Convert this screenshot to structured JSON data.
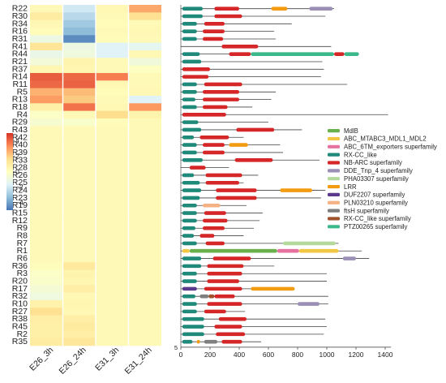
{
  "chart_data": {
    "type": "heatmap",
    "rows": [
      "R22",
      "R30",
      "R34",
      "R16",
      "R31",
      "R41",
      "R44",
      "R21",
      "R37",
      "R14",
      "R11",
      "R5",
      "R13",
      "R18",
      "R4",
      "R29",
      "R43",
      "R42",
      "R40",
      "R39",
      "R33",
      "R28",
      "R26",
      "R25",
      "R24",
      "R23",
      "R19",
      "R15",
      "R12",
      "R9",
      "R8",
      "R7",
      "R1",
      "R6",
      "R36",
      "R3",
      "R20",
      "R17",
      "R32",
      "R10",
      "R27",
      "R38",
      "R45",
      "R2",
      "R35"
    ],
    "columns": [
      "E26_3h",
      "E26_24h",
      "E31_3h",
      "E31_24h"
    ],
    "values": [
      [
        0.3,
        -2.0,
        0.4,
        2.8
      ],
      [
        1.0,
        -2.5,
        0.3,
        1.6
      ],
      [
        0.4,
        -3.0,
        0.2,
        0.3
      ],
      [
        0.2,
        -3.4,
        0.3,
        0.4
      ],
      [
        -1.0,
        -4.5,
        0.2,
        0.3
      ],
      [
        1.4,
        -1.0,
        -1.6,
        -1.4
      ],
      [
        -1.2,
        -0.9,
        -1.6,
        0.4
      ],
      [
        -0.7,
        0.6,
        0.3,
        -0.8
      ],
      [
        0.5,
        0.5,
        0.3,
        -0.1
      ],
      [
        4.2,
        4.0,
        3.6,
        0.3
      ],
      [
        4.0,
        4.1,
        0.4,
        0.3
      ],
      [
        2.6,
        2.4,
        0.2,
        0.4
      ],
      [
        3.0,
        2.1,
        0.3,
        -1.6
      ],
      [
        0.8,
        3.8,
        0.4,
        3.1
      ],
      [
        -0.2,
        0.3,
        1.7,
        0.6
      ],
      [
        -0.5,
        -0.3,
        0.2,
        0.3
      ],
      [
        0.3,
        0.3,
        0.3,
        0.3
      ],
      [
        0.3,
        0.3,
        0.3,
        0.3
      ],
      [
        0.3,
        0.3,
        0.3,
        0.3
      ],
      [
        0.3,
        0.3,
        0.3,
        0.3
      ],
      [
        0.3,
        0.3,
        0.3,
        0.3
      ],
      [
        0.3,
        0.3,
        0.3,
        0.3
      ],
      [
        0.3,
        0.3,
        0.3,
        0.3
      ],
      [
        0.3,
        0.3,
        0.3,
        0.3
      ],
      [
        0.3,
        0.3,
        0.3,
        0.3
      ],
      [
        0.3,
        0.3,
        0.3,
        0.3
      ],
      [
        0.3,
        0.3,
        0.3,
        0.3
      ],
      [
        0.3,
        0.3,
        0.3,
        0.3
      ],
      [
        0.3,
        0.3,
        0.3,
        0.3
      ],
      [
        0.3,
        0.3,
        0.3,
        0.3
      ],
      [
        0.3,
        0.3,
        0.3,
        0.3
      ],
      [
        0.3,
        0.3,
        0.3,
        0.3
      ],
      [
        0.3,
        0.3,
        0.3,
        0.3
      ],
      [
        0.3,
        0.3,
        0.3,
        0.3
      ],
      [
        0.1,
        1.2,
        0.3,
        0.3
      ],
      [
        -0.2,
        0.6,
        0.3,
        0.3
      ],
      [
        -0.3,
        0.5,
        0.3,
        0.3
      ],
      [
        -0.6,
        0.9,
        0.3,
        0.3
      ],
      [
        -0.9,
        0.4,
        0.3,
        0.3
      ],
      [
        0.7,
        0.5,
        0.3,
        0.3
      ],
      [
        1.6,
        0.4,
        0.3,
        0.3
      ],
      [
        0.9,
        0.9,
        0.3,
        0.3
      ],
      [
        0.8,
        1.1,
        0.3,
        0.3
      ],
      [
        0.8,
        0.9,
        0.3,
        0.3
      ],
      [
        1.0,
        1.3,
        0.3,
        0.3
      ]
    ],
    "color_scale": {
      "ticks": [
        4,
        2,
        0,
        -2,
        -4
      ],
      "range": [
        -5,
        5
      ],
      "colors": [
        "#4575b4",
        "#91bfdb",
        "#e0f3f8",
        "#ffffbf",
        "#fee090",
        "#fc8d59",
        "#d73027"
      ]
    },
    "domain_axis": {
      "range": [
        0,
        1500
      ],
      "ticks": [
        0,
        200,
        400,
        600,
        800,
        1000,
        1200,
        1400
      ],
      "origin_label": "5"
    },
    "legend": {
      "placement": "right",
      "items": [
        {
          "name": "MdlB",
          "color": "#6ab04c"
        },
        {
          "name": "ABC_MTABC3_MDL1_MDL2",
          "color": "#f2c744"
        },
        {
          "name": "ABC_6TM_exporters superfamily",
          "color": "#e6739f"
        },
        {
          "name": "RX-CC_like",
          "color": "#1f8a7a"
        },
        {
          "name": "NB-ARC superfamily",
          "color": "#d62728"
        },
        {
          "name": "DDE_Tnp_4 superfamily",
          "color": "#9b8fb5"
        },
        {
          "name": "PHA03307 superfamily",
          "color": "#b5d99c"
        },
        {
          "name": "LRR",
          "color": "#f39c12"
        },
        {
          "name": "DUF2207 superfamily",
          "color": "#5b3a8c"
        },
        {
          "name": "PLN03210 superfamily",
          "color": "#f4b183"
        },
        {
          "name": "ftsH superfamily",
          "color": "#7f7f7f"
        },
        {
          "name": "RX-CC_like superfamily",
          "color": "#a0522d"
        },
        {
          "name": "PTZ00265 superfamily",
          "color": "#3cb98a"
        }
      ]
    },
    "proteins": [
      {
        "length": 1050,
        "domains": [
          [
            10,
            150,
            "RX-CC_like"
          ],
          [
            230,
            400,
            "NB-ARC superfamily"
          ],
          [
            620,
            730,
            "LRR"
          ],
          [
            880,
            1040,
            "DDE_Tnp_4 superfamily"
          ]
        ]
      },
      {
        "length": 990,
        "domains": [
          [
            10,
            150,
            "RX-CC_like"
          ],
          [
            230,
            420,
            "NB-ARC superfamily"
          ]
        ]
      },
      {
        "length": 760,
        "domains": [
          [
            10,
            110,
            "RX-CC_like"
          ],
          [
            160,
            300,
            "NB-ARC superfamily"
          ]
        ]
      },
      {
        "length": 640,
        "domains": [
          [
            10,
            110,
            "RX-CC_like"
          ],
          [
            150,
            300,
            "NB-ARC superfamily"
          ]
        ]
      },
      {
        "length": 650,
        "domains": [
          [
            10,
            110,
            "RX-CC_like"
          ],
          [
            150,
            290,
            "NB-ARC superfamily"
          ]
        ]
      },
      {
        "length": 1030,
        "domains": [
          [
            280,
            530,
            "NB-ARC superfamily"
          ]
        ]
      },
      {
        "length": 1220,
        "domains": [
          [
            10,
            130,
            "RX-CC_like"
          ],
          [
            330,
            480,
            "NB-ARC superfamily"
          ],
          [
            480,
            1050,
            "PTZ00265 superfamily"
          ],
          [
            1050,
            1120,
            "NB-ARC superfamily"
          ],
          [
            1120,
            1220,
            "PTZ00265 superfamily"
          ]
        ]
      },
      {
        "length": 970,
        "domains": [
          [
            10,
            140,
            "RX-CC_like"
          ]
        ]
      },
      {
        "length": 980,
        "domains": [
          [
            10,
            200,
            "NB-ARC superfamily"
          ]
        ]
      },
      {
        "length": 960,
        "domains": [
          [
            10,
            190,
            "NB-ARC superfamily"
          ]
        ]
      },
      {
        "length": 1140,
        "domains": [
          [
            10,
            110,
            "RX-CC_like"
          ],
          [
            160,
            420,
            "NB-ARC superfamily"
          ]
        ]
      },
      {
        "length": 650,
        "domains": [
          [
            10,
            110,
            "RX-CC_like"
          ],
          [
            150,
            400,
            "NB-ARC superfamily"
          ]
        ]
      },
      {
        "length": 620,
        "domains": [
          [
            10,
            100,
            "RX-CC_like"
          ],
          [
            150,
            400,
            "NB-ARC superfamily"
          ]
        ]
      },
      {
        "length": 490,
        "domains": [
          [
            10,
            110,
            "RX-CC_like"
          ],
          [
            150,
            320,
            "NB-ARC superfamily"
          ]
        ]
      },
      {
        "length": 1420,
        "domains": [
          [
            10,
            310,
            "NB-ARC superfamily"
          ]
        ]
      },
      {
        "length": 600,
        "domains": [
          [
            10,
            120,
            "RX-CC_like"
          ]
        ]
      },
      {
        "length": 830,
        "domains": [
          [
            10,
            140,
            "RX-CC_like"
          ],
          [
            380,
            640,
            "NB-ARC superfamily"
          ]
        ]
      },
      {
        "length": 430,
        "domains": [
          [
            10,
            90,
            "RX-CC_like"
          ],
          [
            130,
            330,
            "NB-ARC superfamily"
          ]
        ]
      },
      {
        "length": 680,
        "domains": [
          [
            10,
            110,
            "RX-CC_like"
          ],
          [
            150,
            300,
            "NB-ARC superfamily"
          ],
          [
            330,
            460,
            "LRR"
          ]
        ]
      },
      {
        "length": 700,
        "domains": [
          [
            10,
            110,
            "RX-CC_like"
          ],
          [
            150,
            300,
            "NB-ARC superfamily"
          ]
        ]
      },
      {
        "length": 950,
        "domains": [
          [
            10,
            150,
            "RX-CC_like"
          ],
          [
            370,
            630,
            "NB-ARC superfamily"
          ]
        ]
      },
      {
        "length": 330,
        "domains": [
          [
            60,
            170,
            "NB-ARC superfamily"
          ]
        ]
      },
      {
        "length": 530,
        "domains": [
          [
            10,
            90,
            "RX-CC_like"
          ],
          [
            170,
            420,
            "NB-ARC superfamily"
          ]
        ]
      },
      {
        "length": 430,
        "domains": [
          [
            10,
            130,
            "RX-CC_like"
          ],
          [
            170,
            400,
            "NB-ARC superfamily"
          ]
        ]
      },
      {
        "length": 990,
        "domains": [
          [
            10,
            140,
            "RX-CC_like"
          ],
          [
            240,
            520,
            "NB-ARC superfamily"
          ],
          [
            680,
            900,
            "LRR"
          ]
        ]
      },
      {
        "length": 960,
        "domains": [
          [
            10,
            130,
            "RX-CC_like"
          ],
          [
            240,
            520,
            "NB-ARC superfamily"
          ]
        ]
      },
      {
        "length": 450,
        "domains": [
          [
            10,
            110,
            "RX-CC_like"
          ],
          [
            150,
            270,
            "PLN03210 superfamily"
          ]
        ]
      },
      {
        "length": 560,
        "domains": [
          [
            10,
            110,
            "RX-CC_like"
          ],
          [
            160,
            310,
            "NB-ARC superfamily"
          ]
        ]
      },
      {
        "length": 540,
        "domains": [
          [
            10,
            110,
            "RX-CC_like"
          ],
          [
            150,
            320,
            "NB-ARC superfamily"
          ]
        ]
      },
      {
        "length": 500,
        "domains": [
          [
            10,
            100,
            "RX-CC_like"
          ],
          [
            150,
            300,
            "NB-ARC superfamily"
          ]
        ]
      },
      {
        "length": 430,
        "domains": [
          [
            10,
            90,
            "RX-CC_like"
          ],
          [
            130,
            230,
            "NB-ARC superfamily"
          ]
        ]
      },
      {
        "length": 1080,
        "domains": [
          [
            10,
            110,
            "RX-CC_like"
          ],
          [
            170,
            300,
            "NB-ARC superfamily"
          ],
          [
            700,
            1060,
            "PHA03307 superfamily"
          ]
        ]
      },
      {
        "length": 1240,
        "domains": [
          [
            10,
            60,
            "ABC_MTABC3_MDL1_MDL2"
          ],
          [
            60,
            660,
            "MdlB"
          ],
          [
            660,
            810,
            "ABC_6TM_exporters superfamily"
          ],
          [
            810,
            1080,
            "ABC_MTABC3_MDL1_MDL2"
          ]
        ]
      },
      {
        "length": 1290,
        "domains": [
          [
            10,
            140,
            "RX-CC_like"
          ],
          [
            220,
            480,
            "NB-ARC superfamily"
          ],
          [
            1110,
            1200,
            "DDE_Tnp_4 superfamily"
          ]
        ]
      },
      {
        "length": 640,
        "domains": [
          [
            10,
            140,
            "RX-CC_like"
          ],
          [
            180,
            430,
            "NB-ARC superfamily"
          ]
        ]
      },
      {
        "length": 1000,
        "domains": [
          [
            10,
            110,
            "RX-CC_like"
          ],
          [
            180,
            420,
            "NB-ARC superfamily"
          ]
        ]
      },
      {
        "length": 1000,
        "domains": [
          [
            10,
            110,
            "RX-CC_like"
          ],
          [
            180,
            400,
            "NB-ARC superfamily"
          ]
        ]
      },
      {
        "length": 780,
        "domains": [
          [
            10,
            110,
            "DUF2207 superfamily"
          ],
          [
            160,
            420,
            "NB-ARC superfamily"
          ],
          [
            480,
            780,
            "LRR"
          ]
        ]
      },
      {
        "length": 1010,
        "domains": [
          [
            10,
            100,
            "RX-CC_like"
          ],
          [
            130,
            190,
            "ftsH superfamily"
          ],
          [
            190,
            230,
            "RX-CC_like superfamily"
          ],
          [
            230,
            370,
            "NB-ARC superfamily"
          ]
        ]
      },
      {
        "length": 1010,
        "domains": [
          [
            10,
            110,
            "RX-CC_like"
          ],
          [
            180,
            420,
            "NB-ARC superfamily"
          ],
          [
            800,
            950,
            "DDE_Tnp_4 superfamily"
          ]
        ]
      },
      {
        "length": 440,
        "domains": [
          [
            10,
            110,
            "RX-CC_like"
          ],
          [
            160,
            310,
            "NB-ARC superfamily"
          ]
        ]
      },
      {
        "length": 990,
        "domains": [
          [
            10,
            160,
            "RX-CC_like"
          ],
          [
            260,
            450,
            "NB-ARC superfamily"
          ]
        ]
      },
      {
        "length": 1000,
        "domains": [
          [
            10,
            160,
            "RX-CC_like"
          ],
          [
            230,
            420,
            "NB-ARC superfamily"
          ]
        ]
      },
      {
        "length": 980,
        "domains": [
          [
            10,
            160,
            "RX-CC_like"
          ],
          [
            240,
            440,
            "NB-ARC superfamily"
          ]
        ]
      },
      {
        "length": 550,
        "domains": [
          [
            10,
            80,
            "RX-CC_like"
          ],
          [
            110,
            130,
            "LRR"
          ],
          [
            160,
            250,
            "ftsH superfamily"
          ],
          [
            280,
            420,
            "NB-ARC superfamily"
          ]
        ]
      }
    ]
  }
}
